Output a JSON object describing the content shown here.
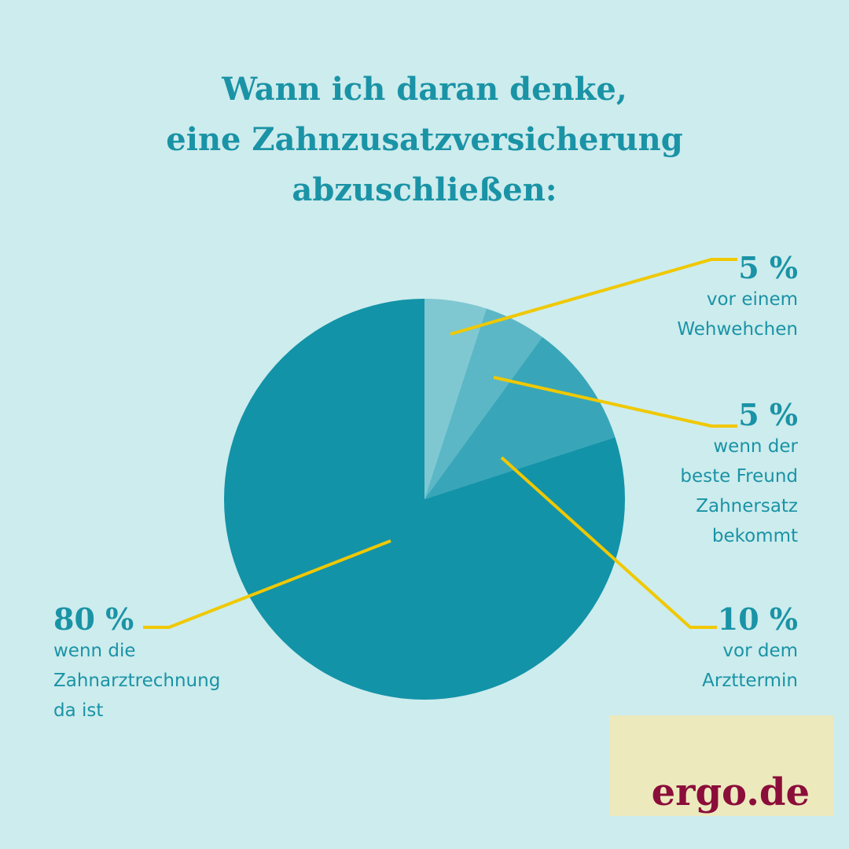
{
  "chart_data": {
    "type": "pie",
    "title": "Wann ich daran denke,\neine Zahnzusatzversicherung\nabzuschließen:",
    "categories": [
      "vor einem\nWehwehchen",
      "wenn der\nbeste Freund\nZahnersatz\nbekommt",
      "vor dem\nArzttermin",
      "wenn die\nZahnarztrechnung\nda ist"
    ],
    "values": [
      5,
      5,
      10,
      80
    ],
    "value_labels": [
      "5 %",
      "5 %",
      "10 %",
      "80 %"
    ],
    "colors": [
      "#7fc8d2",
      "#5bb7c5",
      "#38a6b8",
      "#1393a8"
    ]
  },
  "brand": "ergo.de"
}
